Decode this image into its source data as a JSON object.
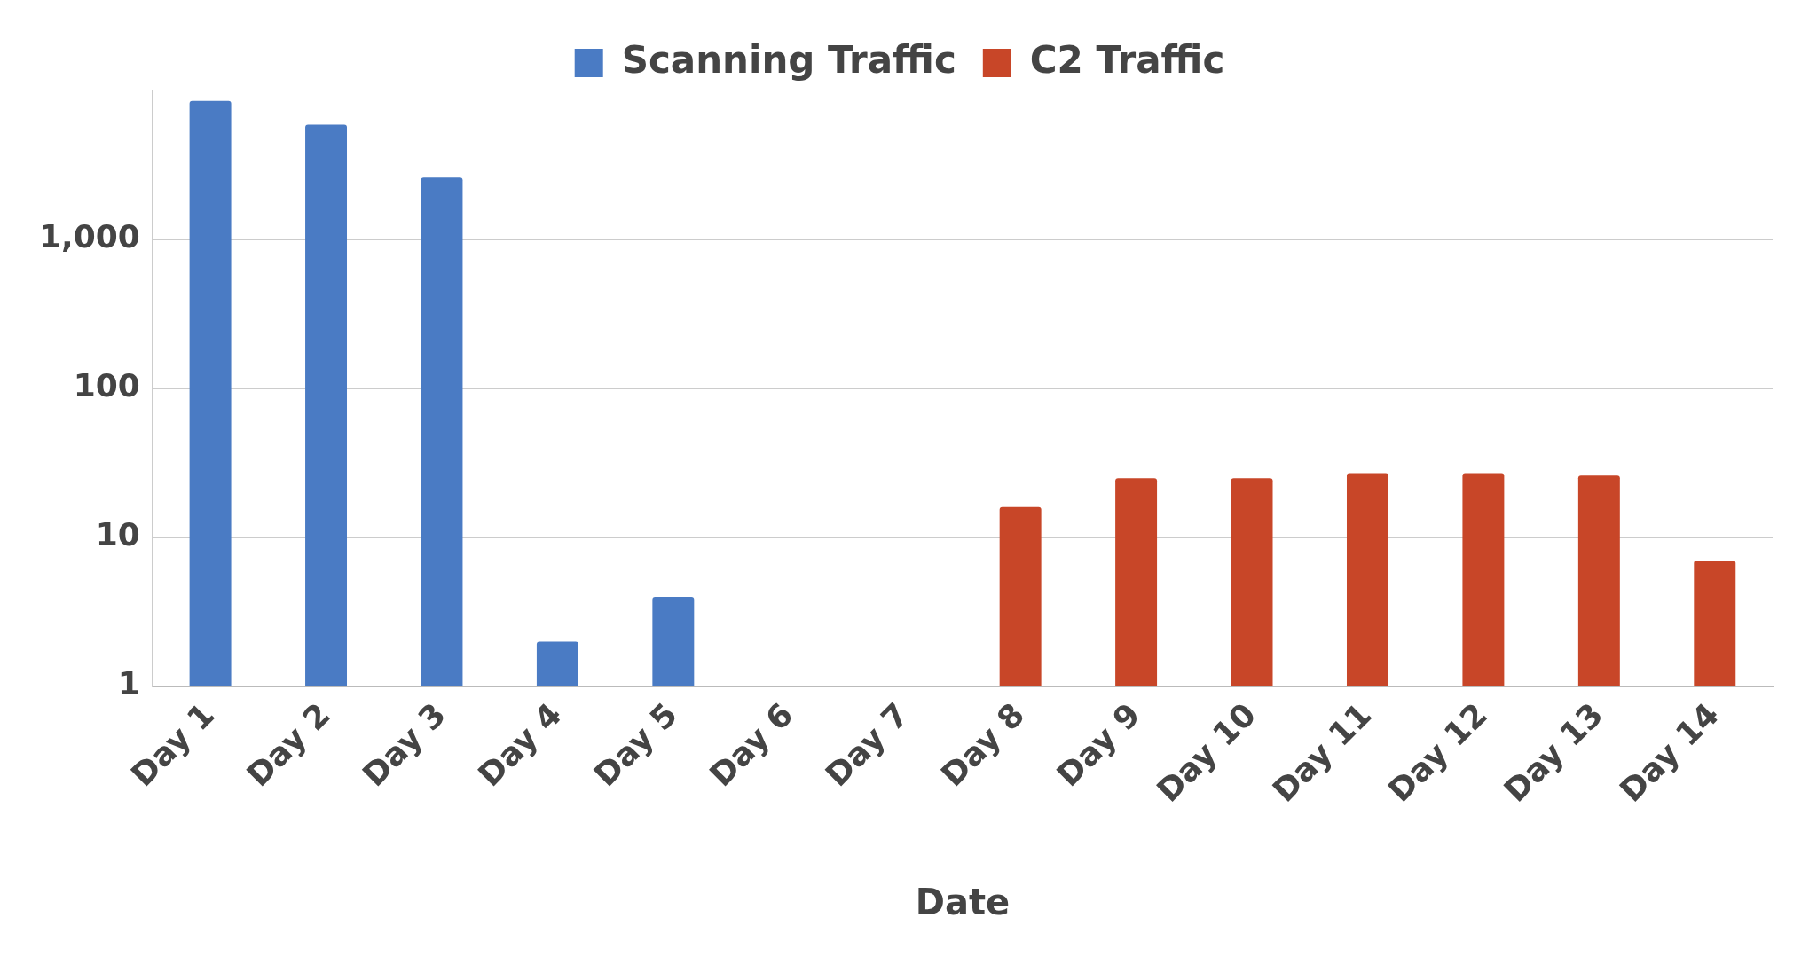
{
  "chart_data": {
    "type": "bar",
    "xlabel": "Date",
    "categories": [
      "Day 1",
      "Day 2",
      "Day 3",
      "Day 4",
      "Day 5",
      "Day 6",
      "Day 7",
      "Day 8",
      "Day 9",
      "Day 10",
      "Day 11",
      "Day 12",
      "Day 13",
      "Day 14"
    ],
    "series": [
      {
        "name": "Scanning Traffic",
        "color": "#4a7bc4",
        "values": [
          8500,
          5900,
          2600,
          2,
          4,
          null,
          null,
          null,
          null,
          null,
          null,
          null,
          null,
          null
        ]
      },
      {
        "name": "C2 Traffic",
        "color": "#c84628",
        "values": [
          null,
          null,
          null,
          null,
          null,
          null,
          null,
          16,
          25,
          25,
          27,
          27,
          26,
          7
        ]
      }
    ],
    "log": true,
    "ylim": [
      1,
      10000
    ],
    "yticks": [
      1,
      10,
      100,
      {
        "value": 1000,
        "label": "1,000"
      }
    ],
    "grid": "y",
    "legend": "top"
  }
}
